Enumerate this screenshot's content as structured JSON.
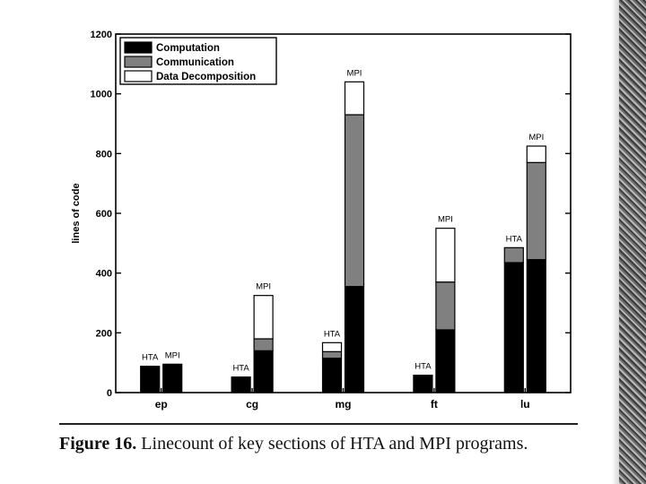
{
  "chart_data": {
    "type": "bar",
    "subtype": "grouped-stacked",
    "ylabel": "lines of code",
    "xlabel": "",
    "ylim": [
      0,
      1200
    ],
    "yticks": [
      0,
      200,
      400,
      600,
      800,
      1000,
      1200
    ],
    "categories": [
      "ep",
      "cg",
      "mg",
      "ft",
      "lu"
    ],
    "groups": [
      "HTA",
      "MPI"
    ],
    "stack_series": [
      {
        "name": "Computation",
        "color": "#000000"
      },
      {
        "name": "Communication",
        "color": "#808080"
      },
      {
        "name": "Data Decomposition",
        "color": "#ffffff"
      }
    ],
    "series": [
      {
        "name": "Computation",
        "values": {
          "HTA": [
            88,
            52,
            115,
            58,
            435
          ],
          "MPI": [
            95,
            140,
            355,
            210,
            445
          ]
        }
      },
      {
        "name": "Communication",
        "values": {
          "HTA": [
            0,
            0,
            22,
            0,
            50
          ],
          "MPI": [
            0,
            40,
            575,
            160,
            325
          ]
        }
      },
      {
        "name": "Data Decomposition",
        "values": {
          "HTA": [
            0,
            0,
            30,
            0,
            0
          ],
          "MPI": [
            0,
            145,
            110,
            180,
            55
          ]
        }
      }
    ],
    "bar_labels": [
      [
        "HTA",
        "MPI"
      ],
      [
        "HTA",
        "MPI"
      ],
      [
        "HTA",
        "MPI"
      ],
      [
        "HTA",
        "MPI"
      ],
      [
        "HTA",
        "MPI"
      ]
    ],
    "legend_position": "top-left",
    "grid": false
  },
  "caption": {
    "label": "Figure 16.",
    "text": "Linecount of key sections of HTA and MPI programs."
  }
}
